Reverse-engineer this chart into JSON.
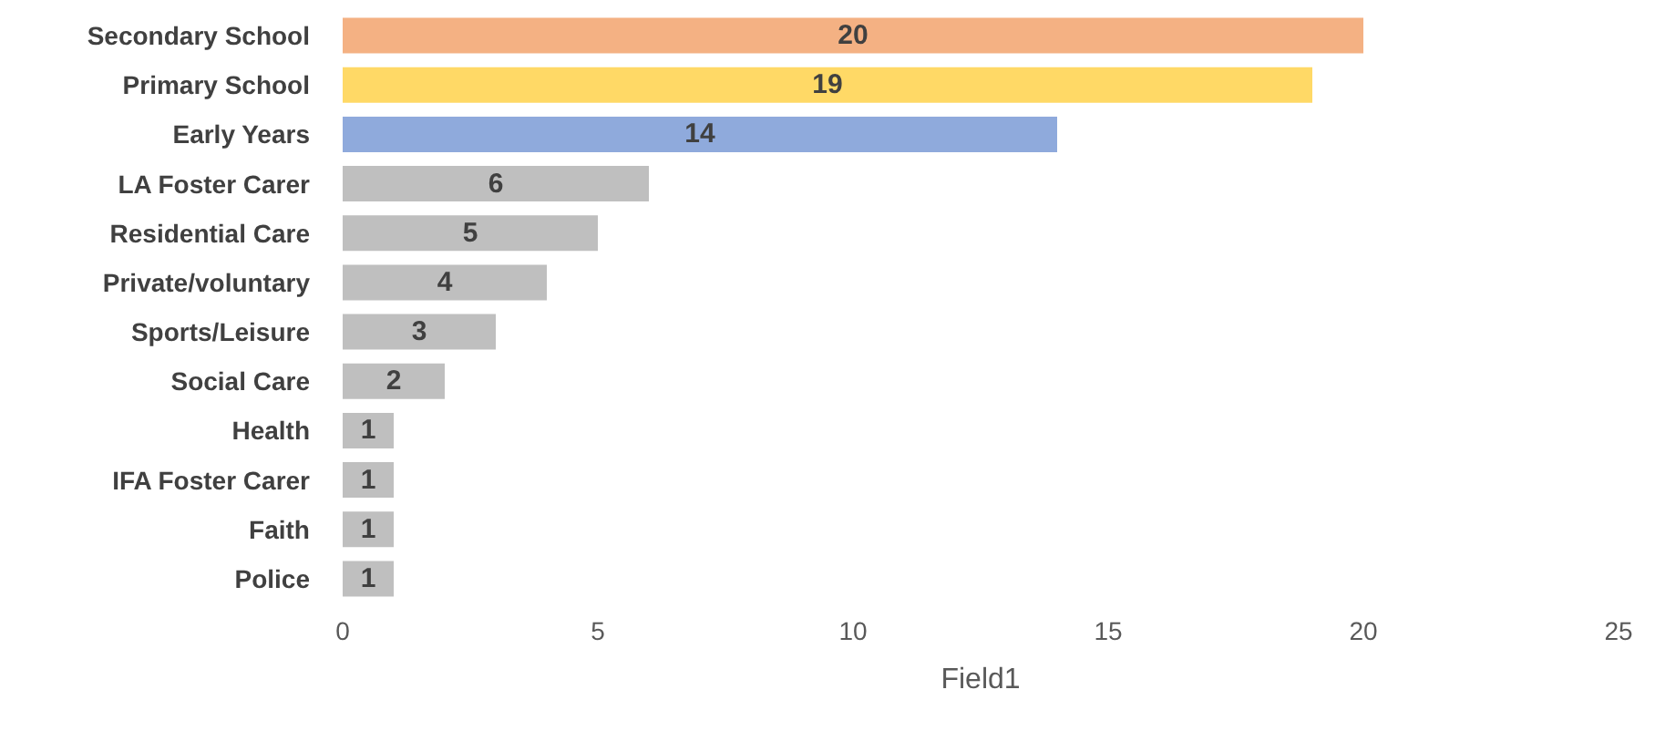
{
  "chart_data": {
    "type": "bar",
    "orientation": "horizontal",
    "xlabel": "Field1",
    "categories": [
      "Secondary School",
      "Primary School",
      "Early Years",
      "LA Foster Carer",
      "Residential Care",
      "Private/voluntary",
      "Sports/Leisure",
      "Social Care",
      "Health",
      "IFA Foster Carer",
      "Faith",
      "Police"
    ],
    "values": [
      20,
      19,
      14,
      6,
      5,
      4,
      3,
      2,
      1,
      1,
      1,
      1
    ],
    "colors": [
      "#f4b183",
      "#ffd966",
      "#8faadc",
      "#bfbfbf",
      "#bfbfbf",
      "#bfbfbf",
      "#bfbfbf",
      "#bfbfbf",
      "#bfbfbf",
      "#bfbfbf",
      "#bfbfbf",
      "#bfbfbf"
    ],
    "xlim": [
      0,
      25
    ],
    "xticks": [
      0,
      5,
      10,
      15,
      20,
      25
    ],
    "grid": false,
    "data_labels": true
  }
}
